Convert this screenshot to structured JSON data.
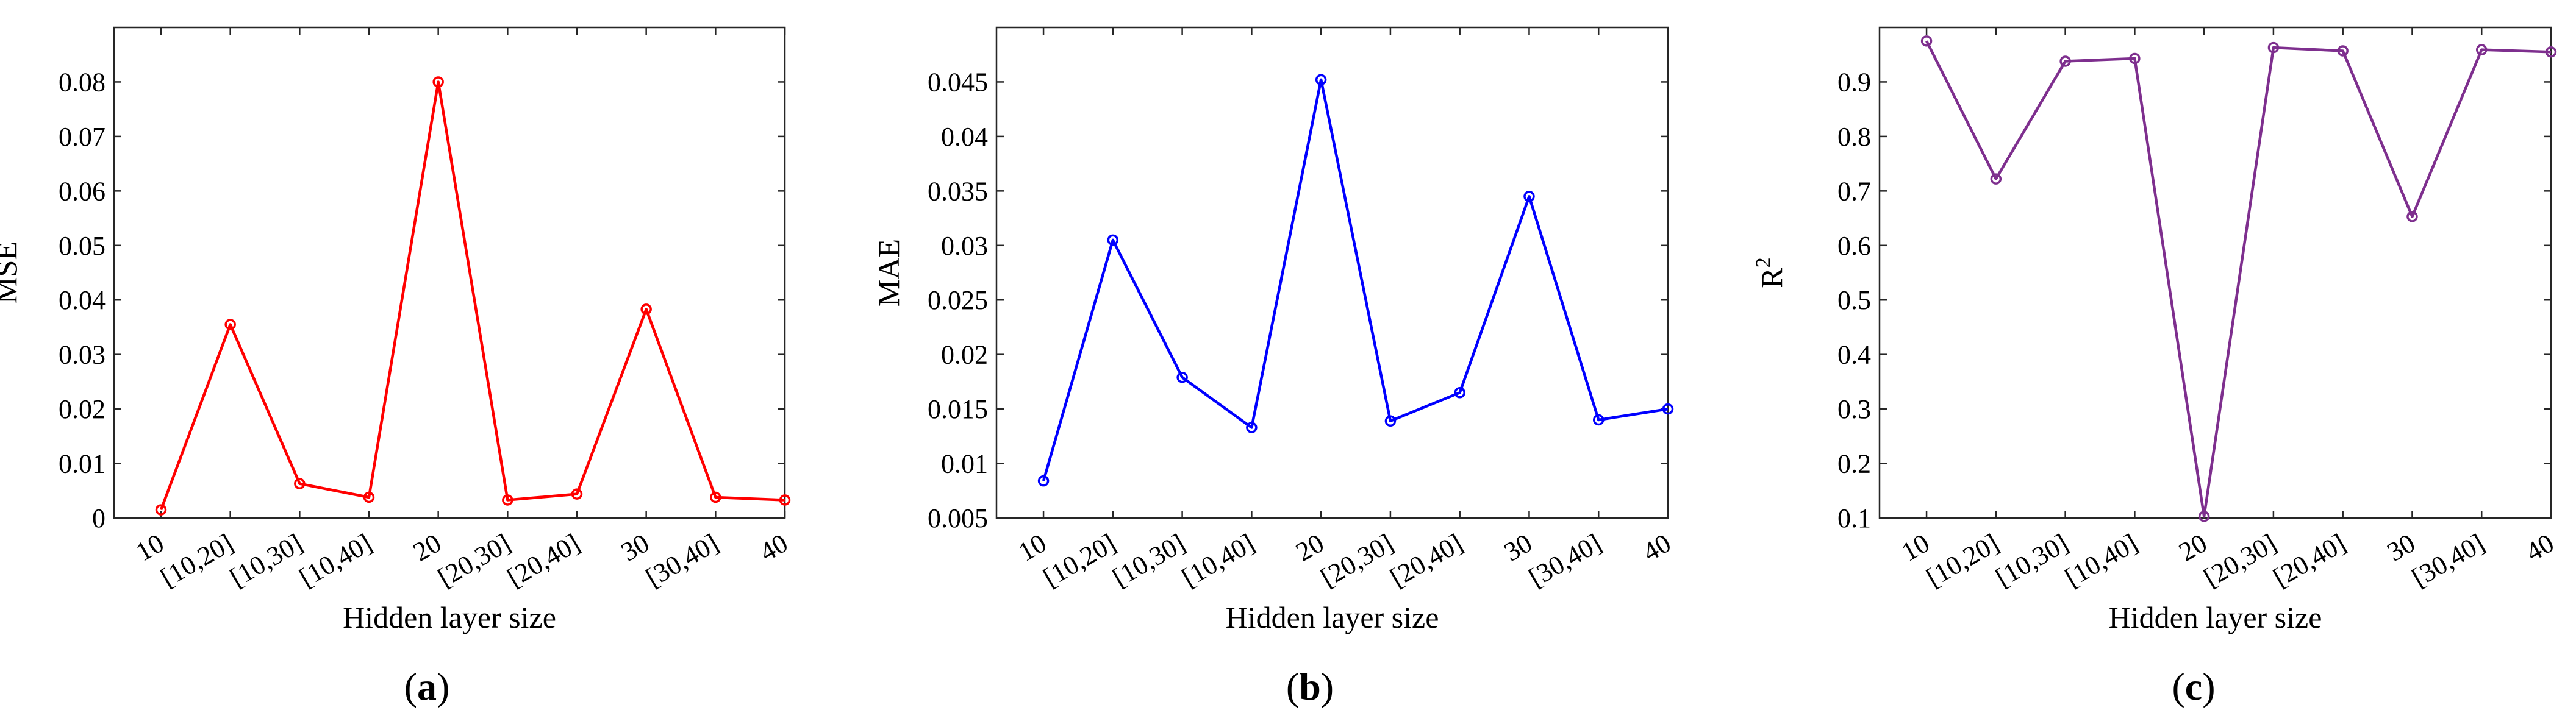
{
  "chart_data": [
    {
      "type": "line",
      "panel": "a",
      "xlabel": "Hidden layer size",
      "ylabel": "MSE",
      "categories": [
        "10",
        "[10,20]",
        "[10,30]",
        "[10,40]",
        "20",
        "[20,30]",
        "[20,40]",
        "30",
        "[30,40]",
        "40"
      ],
      "series": [
        {
          "values": [
            0.0015,
            0.0355,
            0.0063,
            0.0038,
            0.08,
            0.0033,
            0.0044,
            0.0383,
            0.0038,
            0.0033
          ]
        }
      ],
      "ylim": [
        0,
        0.09
      ],
      "yticks": [
        "0",
        "0.01",
        "0.02",
        "0.03",
        "0.04",
        "0.05",
        "0.06",
        "0.07",
        "0.08"
      ],
      "ytick_values": [
        0,
        0.01,
        0.02,
        0.03,
        0.04,
        0.05,
        0.06,
        0.07,
        0.08
      ],
      "color": "#ff0000",
      "grid": false,
      "legend": "none"
    },
    {
      "type": "line",
      "panel": "b",
      "xlabel": "Hidden layer size",
      "ylabel": "MAE",
      "categories": [
        "10",
        "[10,20]",
        "[10,30]",
        "[10,40]",
        "20",
        "[20,30]",
        "[20,40]",
        "30",
        "[30,40]",
        "40"
      ],
      "series": [
        {
          "values": [
            0.0084,
            0.0305,
            0.0179,
            0.0133,
            0.0452,
            0.0139,
            0.0165,
            0.0345,
            0.014,
            0.015
          ]
        }
      ],
      "ylim": [
        0.005,
        0.05
      ],
      "yticks": [
        "0.005",
        "0.01",
        "0.015",
        "0.02",
        "0.025",
        "0.03",
        "0.035",
        "0.04",
        "0.045"
      ],
      "ytick_values": [
        0.005,
        0.01,
        0.015,
        0.02,
        0.025,
        0.03,
        0.035,
        0.04,
        0.045
      ],
      "color": "#0000ff",
      "grid": false,
      "legend": "none"
    },
    {
      "type": "line",
      "panel": "c",
      "xlabel": "Hidden layer size",
      "ylabel": "R",
      "ylabel_sup": "2",
      "categories": [
        "10",
        "[10,20]",
        "[10,30]",
        "[10,40]",
        "20",
        "[20,30]",
        "[20,40]",
        "30",
        "[30,40]",
        "40"
      ],
      "series": [
        {
          "values": [
            0.975,
            0.722,
            0.938,
            0.943,
            0.103,
            0.963,
            0.957,
            0.653,
            0.959,
            0.955
          ]
        }
      ],
      "ylim": [
        0.1,
        1.0
      ],
      "yticks": [
        "0.1",
        "0.2",
        "0.3",
        "0.4",
        "0.5",
        "0.6",
        "0.7",
        "0.8",
        "0.9"
      ],
      "ytick_values": [
        0.1,
        0.2,
        0.3,
        0.4,
        0.5,
        0.6,
        0.7,
        0.8,
        0.9
      ],
      "color": "#7e2f8e",
      "grid": false,
      "legend": "none"
    }
  ],
  "panel_labels": [
    "(a)",
    "(b)",
    "(c)"
  ]
}
